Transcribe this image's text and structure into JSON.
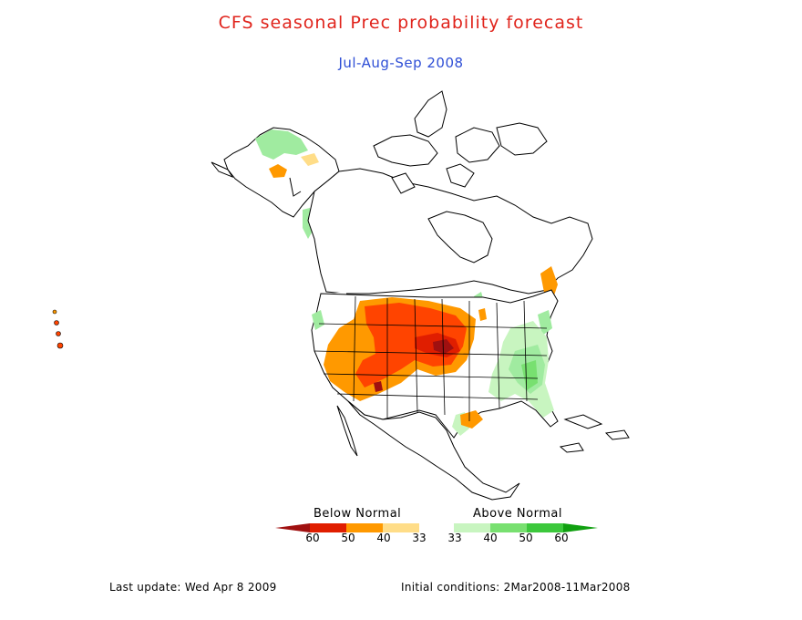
{
  "title": "CFS seasonal Prec probability forecast",
  "subtitle": "Jul-Aug-Sep 2008",
  "legend": {
    "below_label": "Below Normal",
    "above_label": "Above Normal",
    "tick_labels": [
      "60",
      "50",
      "40",
      "33",
      "33",
      "40",
      "50",
      "60"
    ],
    "colors": {
      "below_60_plus": "#a01010",
      "below_50_60": "#e01e00",
      "below_40_50": "#ff4400",
      "below_33_40": "#ff9900",
      "below_light": "#ffdd88",
      "neutral": "#ffffff",
      "above_33_40": "#c8f5c0",
      "above_40_50": "#a0eba0",
      "above_50_60": "#78e070",
      "above_60_plus": "#3cc83c",
      "above_max": "#10a010"
    }
  },
  "footer": {
    "last_update": "Last update: Wed Apr 8 2009",
    "initial_conditions": "Initial conditions: 2Mar2008-11Mar2008"
  }
}
